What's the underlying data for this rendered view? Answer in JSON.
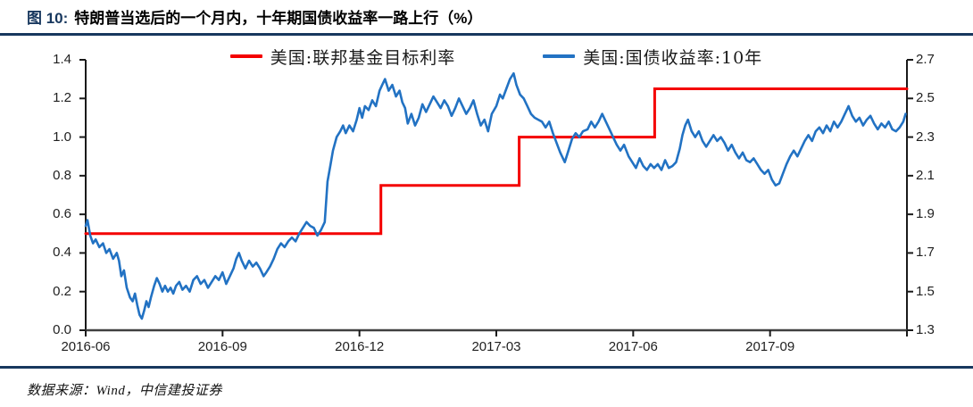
{
  "header": {
    "figure_label": "图 10:",
    "title": "特朗普当选后的一个月内，十年期国债收益率一路上行（%）"
  },
  "footer": {
    "source": "数据来源：Wind，中信建投证券"
  },
  "colors": {
    "navy_rule": "#17375e",
    "fed_funds_red": "#f40000",
    "treasury_blue": "#2272c3",
    "axis": "#404040",
    "tick_text": "#1f1f1f"
  },
  "chart_data": {
    "type": "line",
    "title": "特朗普当选后的一个月内，十年期国债收益率一路上行（%）",
    "x_axis": {
      "unit": "months_since_2016-06",
      "range": [
        0,
        18
      ],
      "tick_months": [
        0,
        3,
        6,
        9,
        12,
        15,
        18
      ],
      "tick_labels": [
        "2016-06",
        "2016-09",
        "2016-12",
        "2017-03",
        "2017-06",
        "2017-09",
        ""
      ]
    },
    "y_left": {
      "range": [
        0.0,
        1.4
      ],
      "ticks": [
        "0.0",
        "0.2",
        "0.4",
        "0.6",
        "0.8",
        "1.0",
        "1.2",
        "1.4"
      ]
    },
    "y_right": {
      "range": [
        1.3,
        2.7
      ],
      "ticks": [
        "1.3",
        "1.5",
        "1.7",
        "1.9",
        "2.1",
        "2.3",
        "2.5",
        "2.7"
      ]
    },
    "legend_position": "top-center",
    "grid": false,
    "series": [
      {
        "name": "美国:联邦基金目标利率",
        "color": "#f40000",
        "axis": "left",
        "width": 3,
        "points": [
          [
            0,
            0.5
          ],
          [
            6.47,
            0.5
          ],
          [
            6.47,
            0.75
          ],
          [
            9.5,
            0.75
          ],
          [
            9.5,
            1.0
          ],
          [
            12.47,
            1.0
          ],
          [
            12.47,
            1.25
          ],
          [
            18,
            1.25
          ]
        ]
      },
      {
        "name": "美国:国债收益率:10年",
        "color": "#2272c3",
        "axis": "right",
        "width": 2.6,
        "points": [
          [
            0,
            1.84
          ],
          [
            0.04,
            1.87
          ],
          [
            0.1,
            1.79
          ],
          [
            0.16,
            1.75
          ],
          [
            0.22,
            1.77
          ],
          [
            0.3,
            1.73
          ],
          [
            0.38,
            1.75
          ],
          [
            0.45,
            1.7
          ],
          [
            0.52,
            1.72
          ],
          [
            0.6,
            1.67
          ],
          [
            0.68,
            1.7
          ],
          [
            0.73,
            1.66
          ],
          [
            0.78,
            1.58
          ],
          [
            0.84,
            1.61
          ],
          [
            0.9,
            1.52
          ],
          [
            0.97,
            1.47
          ],
          [
            1.03,
            1.45
          ],
          [
            1.08,
            1.49
          ],
          [
            1.13,
            1.43
          ],
          [
            1.18,
            1.38
          ],
          [
            1.23,
            1.36
          ],
          [
            1.28,
            1.4
          ],
          [
            1.33,
            1.45
          ],
          [
            1.38,
            1.42
          ],
          [
            1.43,
            1.47
          ],
          [
            1.5,
            1.53
          ],
          [
            1.56,
            1.57
          ],
          [
            1.62,
            1.54
          ],
          [
            1.68,
            1.5
          ],
          [
            1.74,
            1.53
          ],
          [
            1.8,
            1.5
          ],
          [
            1.86,
            1.52
          ],
          [
            1.92,
            1.49
          ],
          [
            1.98,
            1.53
          ],
          [
            2.05,
            1.55
          ],
          [
            2.12,
            1.51
          ],
          [
            2.2,
            1.53
          ],
          [
            2.28,
            1.5
          ],
          [
            2.36,
            1.56
          ],
          [
            2.44,
            1.58
          ],
          [
            2.52,
            1.54
          ],
          [
            2.6,
            1.56
          ],
          [
            2.68,
            1.52
          ],
          [
            2.76,
            1.55
          ],
          [
            2.84,
            1.58
          ],
          [
            2.92,
            1.56
          ],
          [
            3,
            1.6
          ],
          [
            3.08,
            1.54
          ],
          [
            3.16,
            1.58
          ],
          [
            3.24,
            1.62
          ],
          [
            3.3,
            1.67
          ],
          [
            3.36,
            1.7
          ],
          [
            3.42,
            1.66
          ],
          [
            3.5,
            1.62
          ],
          [
            3.58,
            1.66
          ],
          [
            3.66,
            1.63
          ],
          [
            3.74,
            1.65
          ],
          [
            3.82,
            1.62
          ],
          [
            3.9,
            1.58
          ],
          [
            3.96,
            1.6
          ],
          [
            4.04,
            1.63
          ],
          [
            4.12,
            1.67
          ],
          [
            4.2,
            1.72
          ],
          [
            4.28,
            1.75
          ],
          [
            4.36,
            1.73
          ],
          [
            4.44,
            1.76
          ],
          [
            4.52,
            1.78
          ],
          [
            4.6,
            1.76
          ],
          [
            4.68,
            1.8
          ],
          [
            4.76,
            1.83
          ],
          [
            4.84,
            1.86
          ],
          [
            4.92,
            1.84
          ],
          [
            5,
            1.83
          ],
          [
            5.08,
            1.79
          ],
          [
            5.16,
            1.82
          ],
          [
            5.24,
            1.86
          ],
          [
            5.3,
            2.07
          ],
          [
            5.36,
            2.15
          ],
          [
            5.42,
            2.23
          ],
          [
            5.5,
            2.3
          ],
          [
            5.58,
            2.33
          ],
          [
            5.64,
            2.36
          ],
          [
            5.7,
            2.32
          ],
          [
            5.78,
            2.36
          ],
          [
            5.86,
            2.33
          ],
          [
            5.94,
            2.39
          ],
          [
            6,
            2.45
          ],
          [
            6.06,
            2.4
          ],
          [
            6.12,
            2.46
          ],
          [
            6.2,
            2.44
          ],
          [
            6.28,
            2.49
          ],
          [
            6.36,
            2.46
          ],
          [
            6.44,
            2.54
          ],
          [
            6.5,
            2.57
          ],
          [
            6.56,
            2.6
          ],
          [
            6.64,
            2.54
          ],
          [
            6.72,
            2.57
          ],
          [
            6.8,
            2.51
          ],
          [
            6.88,
            2.54
          ],
          [
            6.94,
            2.48
          ],
          [
            7,
            2.45
          ],
          [
            7.06,
            2.37
          ],
          [
            7.14,
            2.42
          ],
          [
            7.22,
            2.36
          ],
          [
            7.3,
            2.4
          ],
          [
            7.38,
            2.47
          ],
          [
            7.46,
            2.43
          ],
          [
            7.54,
            2.47
          ],
          [
            7.62,
            2.51
          ],
          [
            7.7,
            2.48
          ],
          [
            7.78,
            2.45
          ],
          [
            7.86,
            2.49
          ],
          [
            7.94,
            2.46
          ],
          [
            8.02,
            2.41
          ],
          [
            8.1,
            2.45
          ],
          [
            8.18,
            2.5
          ],
          [
            8.26,
            2.46
          ],
          [
            8.34,
            2.42
          ],
          [
            8.42,
            2.45
          ],
          [
            8.5,
            2.49
          ],
          [
            8.58,
            2.42
          ],
          [
            8.66,
            2.36
          ],
          [
            8.74,
            2.39
          ],
          [
            8.82,
            2.33
          ],
          [
            8.9,
            2.42
          ],
          [
            9,
            2.46
          ],
          [
            9.08,
            2.52
          ],
          [
            9.14,
            2.5
          ],
          [
            9.22,
            2.55
          ],
          [
            9.3,
            2.6
          ],
          [
            9.38,
            2.63
          ],
          [
            9.44,
            2.57
          ],
          [
            9.52,
            2.52
          ],
          [
            9.6,
            2.5
          ],
          [
            9.68,
            2.46
          ],
          [
            9.76,
            2.42
          ],
          [
            9.84,
            2.4
          ],
          [
            9.92,
            2.39
          ],
          [
            10,
            2.38
          ],
          [
            10.08,
            2.35
          ],
          [
            10.16,
            2.38
          ],
          [
            10.24,
            2.32
          ],
          [
            10.32,
            2.27
          ],
          [
            10.4,
            2.22
          ],
          [
            10.5,
            2.17
          ],
          [
            10.58,
            2.23
          ],
          [
            10.66,
            2.29
          ],
          [
            10.74,
            2.32
          ],
          [
            10.82,
            2.3
          ],
          [
            10.9,
            2.33
          ],
          [
            11,
            2.34
          ],
          [
            11.08,
            2.38
          ],
          [
            11.16,
            2.35
          ],
          [
            11.24,
            2.38
          ],
          [
            11.32,
            2.42
          ],
          [
            11.4,
            2.38
          ],
          [
            11.48,
            2.34
          ],
          [
            11.56,
            2.3
          ],
          [
            11.64,
            2.26
          ],
          [
            11.72,
            2.23
          ],
          [
            11.8,
            2.26
          ],
          [
            11.9,
            2.2
          ],
          [
            11.98,
            2.17
          ],
          [
            12.06,
            2.14
          ],
          [
            12.14,
            2.19
          ],
          [
            12.22,
            2.15
          ],
          [
            12.3,
            2.13
          ],
          [
            12.38,
            2.16
          ],
          [
            12.46,
            2.14
          ],
          [
            12.54,
            2.16
          ],
          [
            12.62,
            2.13
          ],
          [
            12.7,
            2.18
          ],
          [
            12.78,
            2.14
          ],
          [
            12.86,
            2.15
          ],
          [
            12.94,
            2.17
          ],
          [
            13.02,
            2.24
          ],
          [
            13.08,
            2.31
          ],
          [
            13.14,
            2.36
          ],
          [
            13.2,
            2.39
          ],
          [
            13.28,
            2.33
          ],
          [
            13.36,
            2.3
          ],
          [
            13.44,
            2.33
          ],
          [
            13.52,
            2.28
          ],
          [
            13.6,
            2.25
          ],
          [
            13.68,
            2.28
          ],
          [
            13.76,
            2.31
          ],
          [
            13.84,
            2.28
          ],
          [
            13.92,
            2.3
          ],
          [
            14,
            2.27
          ],
          [
            14.08,
            2.23
          ],
          [
            14.16,
            2.26
          ],
          [
            14.24,
            2.22
          ],
          [
            14.32,
            2.19
          ],
          [
            14.4,
            2.22
          ],
          [
            14.48,
            2.18
          ],
          [
            14.56,
            2.17
          ],
          [
            14.64,
            2.19
          ],
          [
            14.72,
            2.16
          ],
          [
            14.8,
            2.13
          ],
          [
            14.88,
            2.11
          ],
          [
            14.96,
            2.13
          ],
          [
            15.04,
            2.08
          ],
          [
            15.12,
            2.05
          ],
          [
            15.2,
            2.06
          ],
          [
            15.28,
            2.11
          ],
          [
            15.36,
            2.16
          ],
          [
            15.44,
            2.2
          ],
          [
            15.52,
            2.23
          ],
          [
            15.6,
            2.2
          ],
          [
            15.68,
            2.24
          ],
          [
            15.76,
            2.28
          ],
          [
            15.84,
            2.31
          ],
          [
            15.92,
            2.28
          ],
          [
            16,
            2.33
          ],
          [
            16.08,
            2.35
          ],
          [
            16.16,
            2.32
          ],
          [
            16.24,
            2.36
          ],
          [
            16.32,
            2.33
          ],
          [
            16.4,
            2.38
          ],
          [
            16.48,
            2.35
          ],
          [
            16.56,
            2.38
          ],
          [
            16.64,
            2.42
          ],
          [
            16.72,
            2.46
          ],
          [
            16.8,
            2.41
          ],
          [
            16.88,
            2.38
          ],
          [
            16.96,
            2.4
          ],
          [
            17.04,
            2.36
          ],
          [
            17.12,
            2.39
          ],
          [
            17.2,
            2.41
          ],
          [
            17.28,
            2.37
          ],
          [
            17.36,
            2.34
          ],
          [
            17.44,
            2.37
          ],
          [
            17.52,
            2.35
          ],
          [
            17.6,
            2.38
          ],
          [
            17.68,
            2.34
          ],
          [
            17.76,
            2.33
          ],
          [
            17.84,
            2.35
          ],
          [
            17.92,
            2.38
          ],
          [
            17.97,
            2.42
          ]
        ]
      }
    ]
  }
}
